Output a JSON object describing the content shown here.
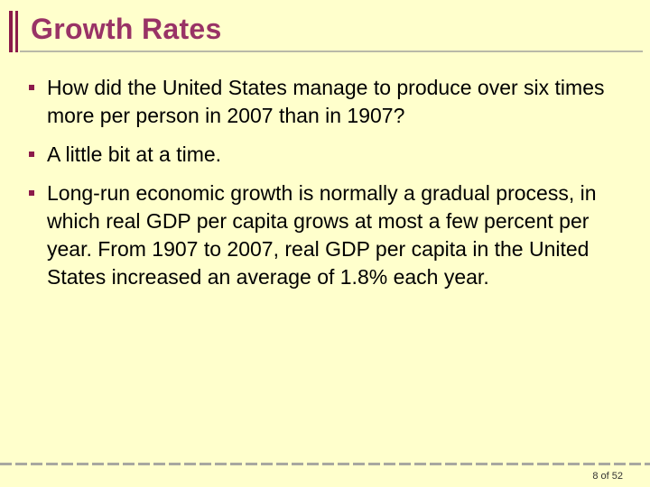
{
  "slide": {
    "title": "Growth Rates",
    "bullets": [
      "How did the United States manage to produce over six times more per person in 2007 than in 1907?",
      "A little bit at a time.",
      "Long-run economic growth is normally a gradual process, in which real GDP per capita grows at most a few percent per year. From 1907 to 2007, real GDP per capita in the United States increased an average of 1.8% each year."
    ],
    "page_number": "8 of 52"
  },
  "colors": {
    "background": "#FFFFCC",
    "title": "#993366",
    "accent": "#8B1A4A",
    "text": "#000000"
  }
}
